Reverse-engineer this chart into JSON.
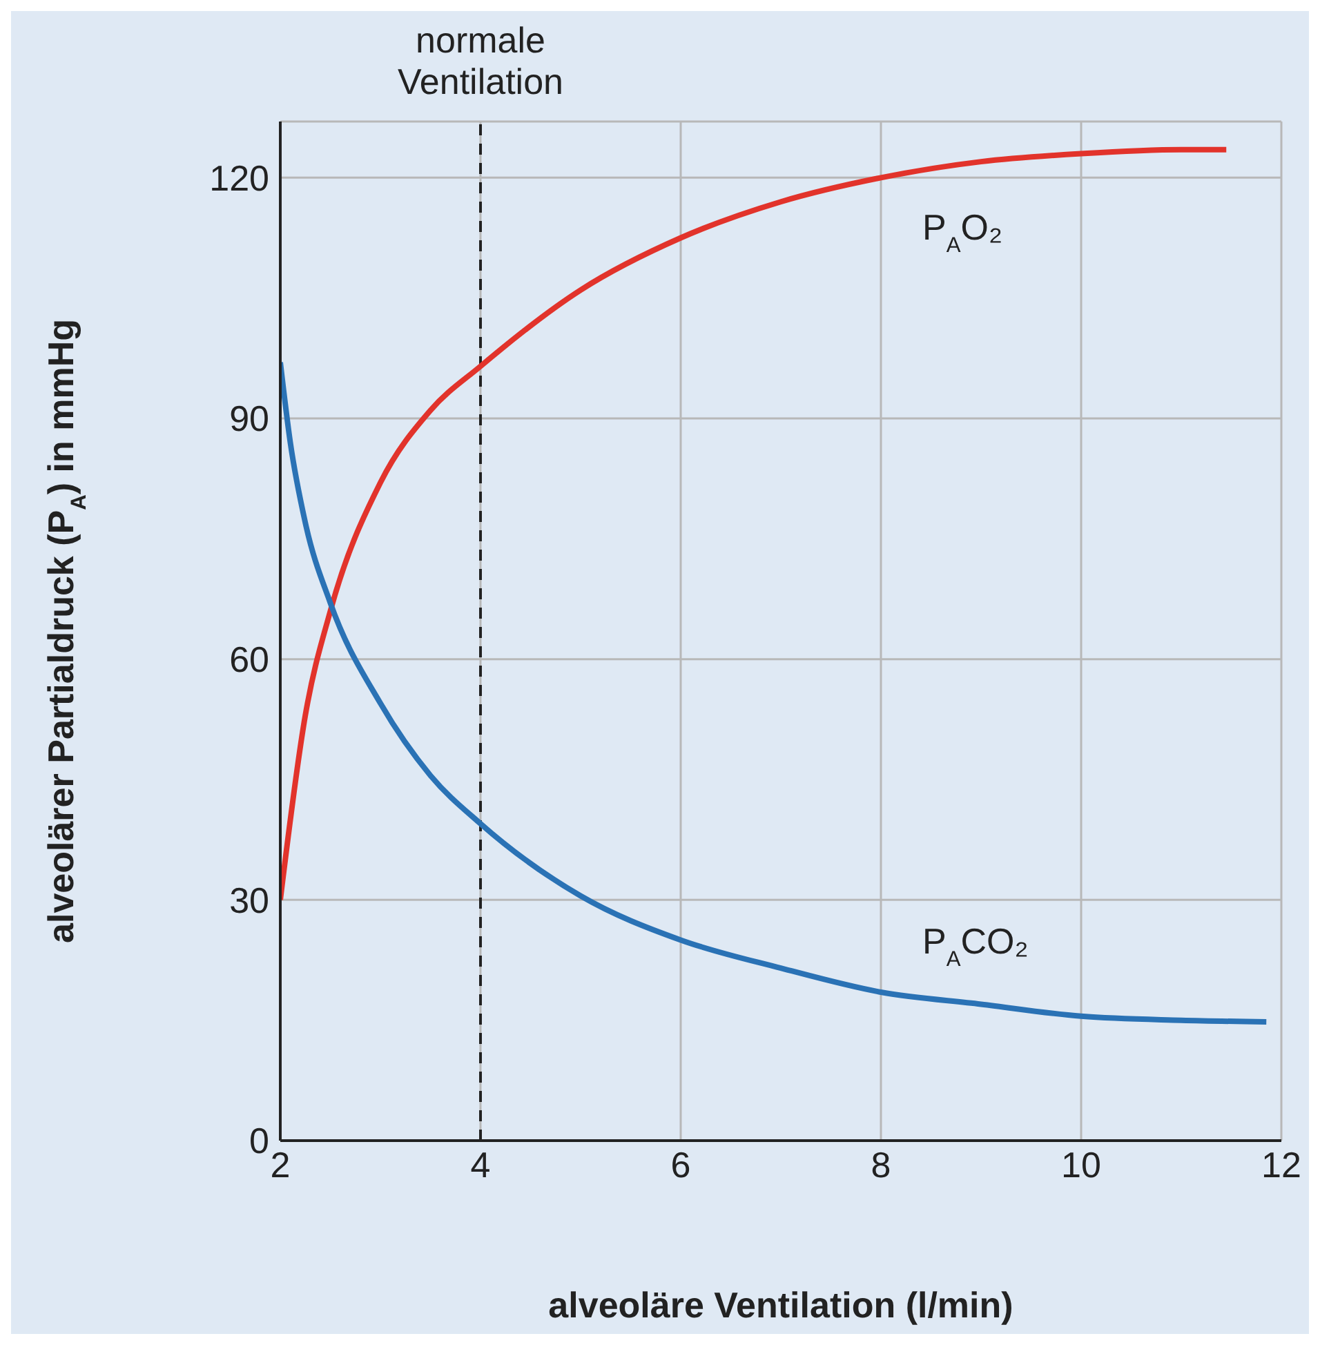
{
  "chart_data": {
    "type": "line",
    "xlabel": "alveoläre Ventilation (l/min)",
    "ylabel": "alveolärer Partialdruck (P$_{A}$) in mmHg",
    "xlim": [
      2,
      12
    ],
    "xticks": [
      2,
      4,
      6,
      8,
      10,
      12
    ],
    "ylim": [
      0,
      127
    ],
    "yticks": [
      0,
      30,
      60,
      90,
      120
    ],
    "grid": true,
    "marker": "none",
    "line_style": "solid",
    "series": [
      {
        "name": "P$_{A}$O₂",
        "color": "#e2332b",
        "x": [
          2,
          2.25,
          2.5,
          3,
          3.5,
          4,
          5,
          6,
          7,
          8,
          9,
          10,
          11,
          11.45
        ],
        "values": [
          30,
          53,
          66,
          82,
          91,
          96.5,
          106,
          112.5,
          117,
          120,
          122,
          123,
          123.5,
          123.5
        ]
      },
      {
        "name": "P$_{A}$CO₂",
        "color": "#2a72b5",
        "x": [
          2,
          2.1,
          2.25,
          2.5,
          3,
          3.5,
          4,
          5,
          6,
          7,
          8,
          9,
          10,
          11,
          11.85
        ],
        "values": [
          97,
          87,
          77,
          67,
          54.5,
          45.5,
          39.5,
          30.5,
          25,
          21.5,
          18.5,
          17,
          15.5,
          15,
          14.8
        ]
      }
    ],
    "ref_lines": [
      {
        "axis": "x",
        "value": 4,
        "label": "normale Ventilation",
        "color": "#222222",
        "line_style": "dashed"
      }
    ]
  }
}
